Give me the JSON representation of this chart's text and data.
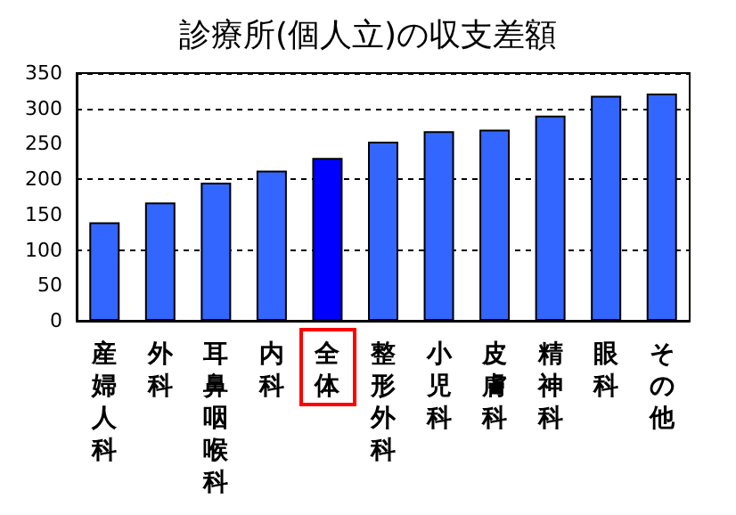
{
  "chart_data": {
    "type": "bar",
    "title": "診療所(個人立)の収支差額",
    "categories": [
      "産婦人科",
      "外科",
      "耳鼻咽喉科",
      "内科",
      "全体",
      "整形外科",
      "小児科",
      "皮膚科",
      "精神科",
      "眼科",
      "その他"
    ],
    "values": [
      139,
      167,
      195,
      212,
      230,
      253,
      268,
      270,
      290,
      318,
      321
    ],
    "colors": [
      "#3366ff",
      "#3366ff",
      "#3366ff",
      "#3366ff",
      "#0000ff",
      "#3366ff",
      "#3366ff",
      "#3366ff",
      "#3366ff",
      "#3366ff",
      "#3366ff"
    ],
    "ylim": [
      0,
      350
    ],
    "yticks": [
      0,
      50,
      100,
      150,
      200,
      250,
      300,
      350
    ],
    "grid": "y"
  }
}
